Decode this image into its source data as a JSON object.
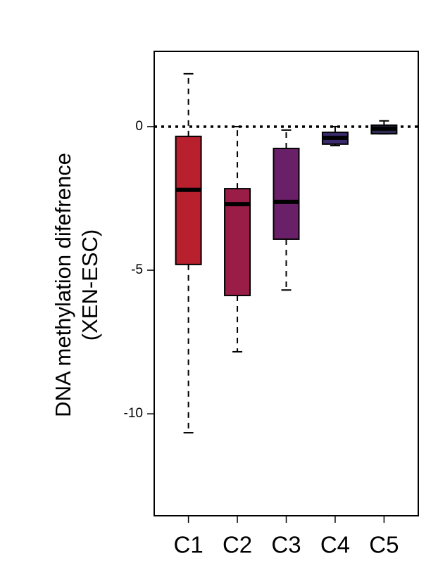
{
  "chart_data": {
    "type": "box",
    "y_label": [
      "DNA methylation difefrence",
      "(XEN-ESC)"
    ],
    "categories": [
      "C1",
      "C2",
      "C3",
      "C4",
      "C5"
    ],
    "min": [
      -10.66,
      -7.84,
      -5.69,
      -0.66,
      -0.25
    ],
    "q1": [
      -4.8,
      -5.88,
      -3.92,
      -0.61,
      -0.25
    ],
    "median": [
      -2.2,
      -2.7,
      -2.62,
      -0.39,
      -0.07
    ],
    "q3": [
      -0.34,
      -2.16,
      -0.76,
      -0.2,
      0.05
    ],
    "max": [
      1.84,
      0,
      -0.12,
      0,
      0.2
    ],
    "colors": [
      "#b8202e",
      "#9a1d48",
      "#6a2068",
      "#3b2a6e",
      "#2d2b52"
    ],
    "ylim": [
      -13.55,
      2.62
    ],
    "yticks": [
      0,
      -5,
      -10
    ],
    "refline": 0
  }
}
